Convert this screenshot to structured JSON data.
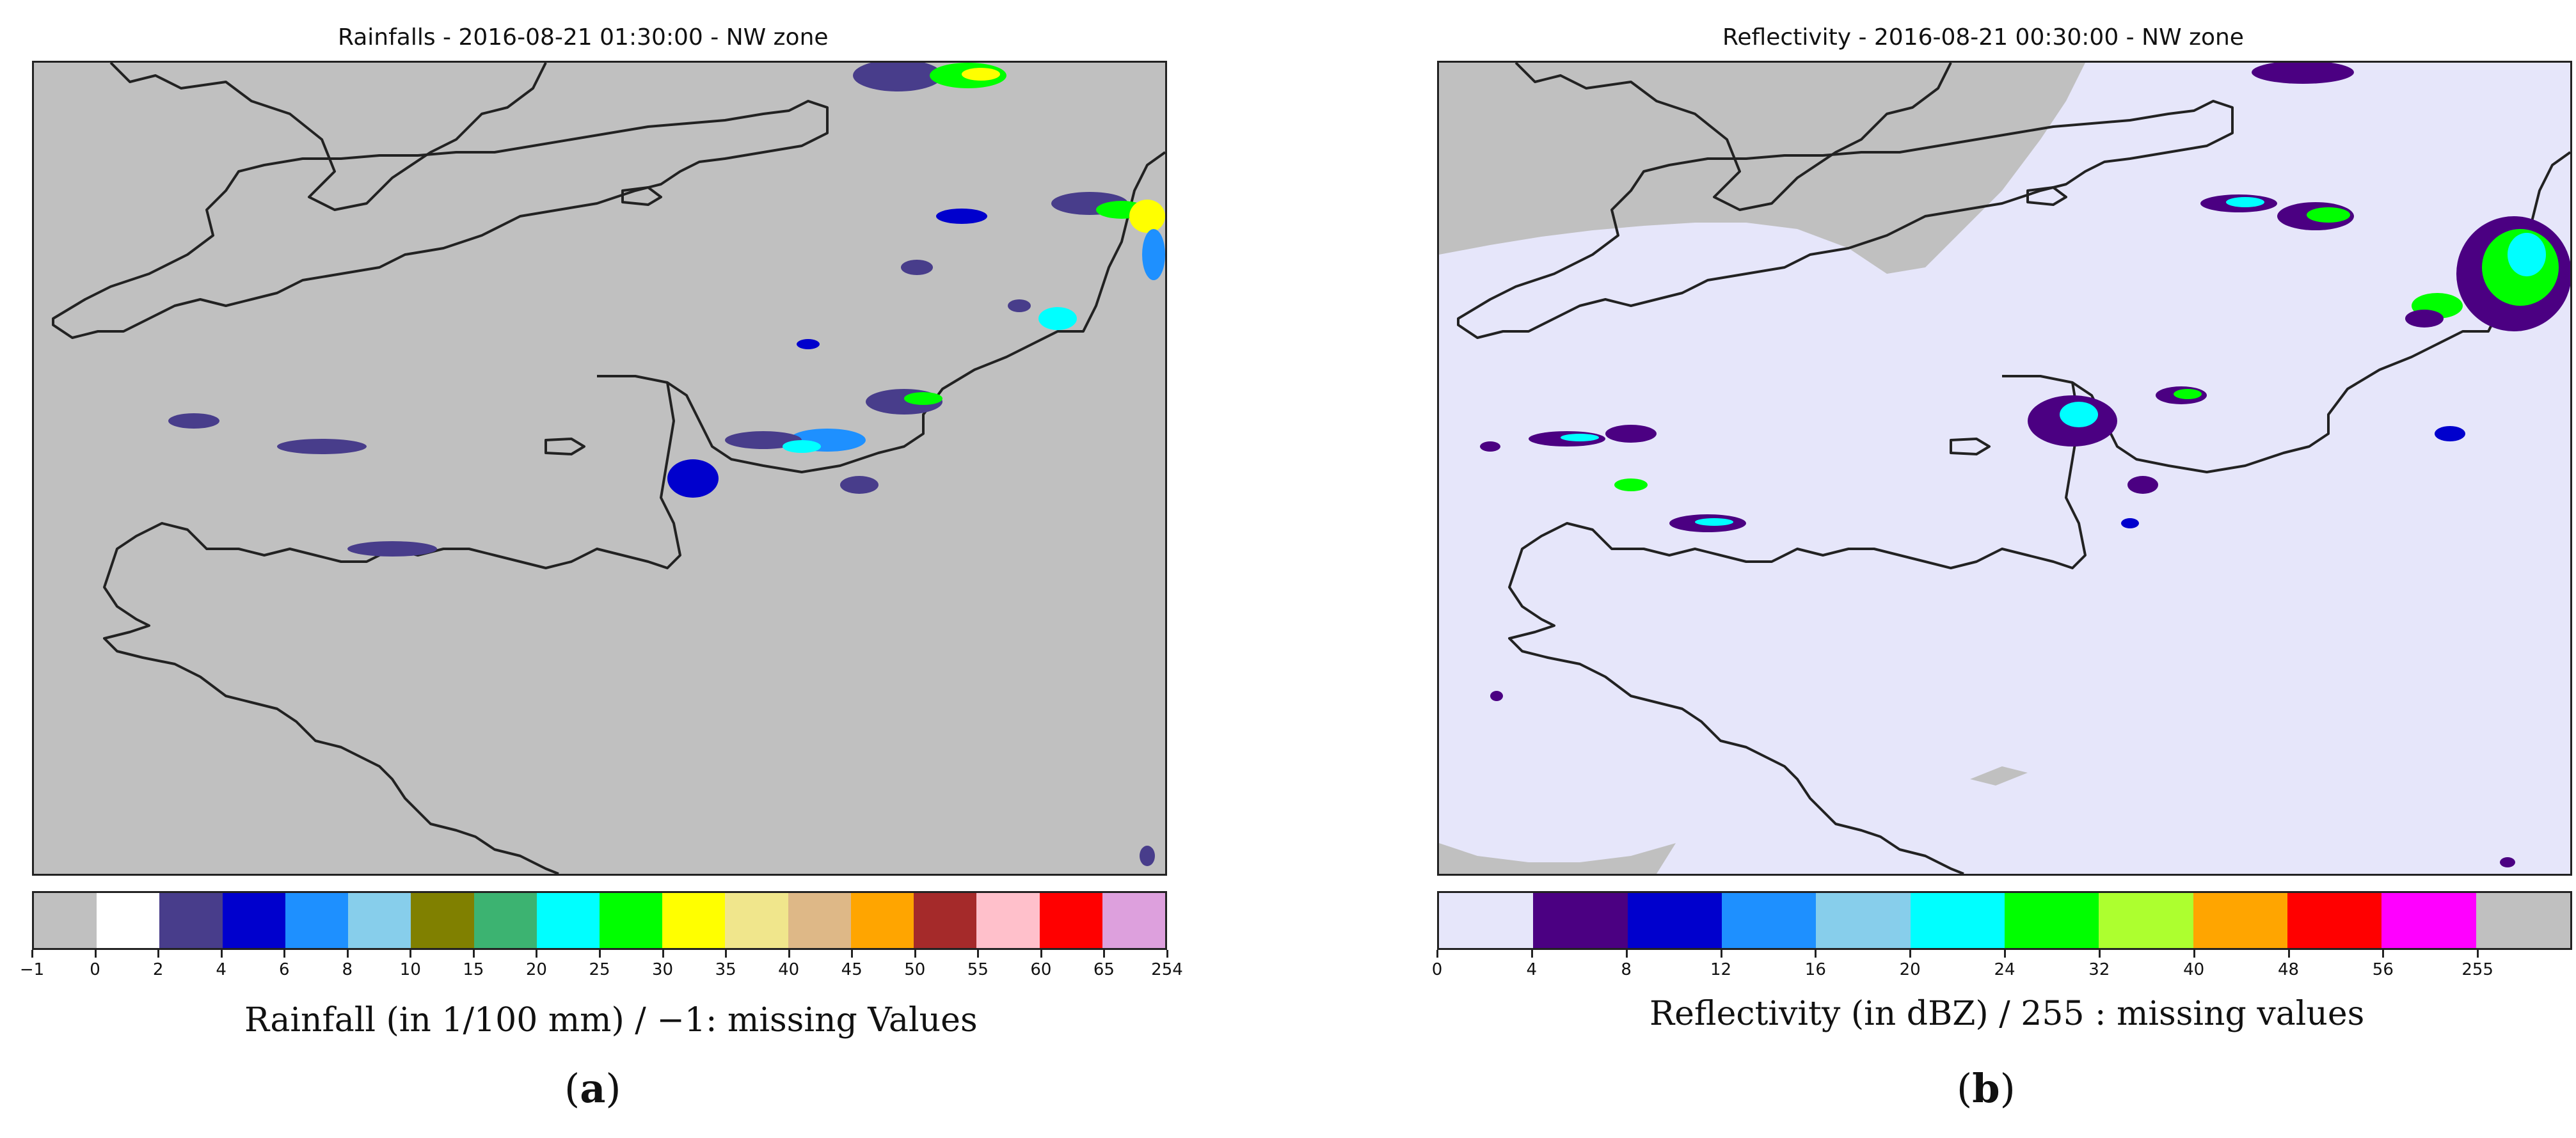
{
  "panels": [
    {
      "id": "a",
      "title": "Rainfalls - 2016-08-21 01:30:00 - NW zone",
      "background_color": "#c0c0c0",
      "coastline_color": "#222222",
      "colorbar": {
        "label": "Rainfall (in 1/100 mm) / −1: missing Values",
        "ticks": [
          "−1",
          "0",
          "2",
          "4",
          "6",
          "8",
          "10",
          "15",
          "20",
          "25",
          "30",
          "35",
          "40",
          "45",
          "50",
          "55",
          "60",
          "65",
          "254"
        ],
        "colors": [
          "#c0c0c0",
          "#ffffff",
          "#483d8b",
          "#0000cd",
          "#1e90ff",
          "#87ceeb",
          "#808000",
          "#3cb371",
          "#00ffff",
          "#00ff00",
          "#ffff00",
          "#f0e68c",
          "#deb887",
          "#ffa500",
          "#a52a2a",
          "#ffc0cb",
          "#ff0000",
          "#dda0dd"
        ]
      },
      "letter": "a"
    },
    {
      "id": "b",
      "title": "Reflectivity - 2016-08-21 00:30:00 - NW zone",
      "background_color": "#e6e6fa",
      "coastline_color": "#222222",
      "colorbar": {
        "label": "Reflectivity (in dBZ) / 255 : missing values",
        "ticks": [
          "0",
          "4",
          "8",
          "12",
          "16",
          "20",
          "24",
          "32",
          "40",
          "48",
          "56",
          "255"
        ],
        "colors": [
          "#e6e6fa",
          "#4b0082",
          "#0000cd",
          "#1e90ff",
          "#87ceeb",
          "#00ffff",
          "#00ff00",
          "#adff2f",
          "#ffa500",
          "#ff0000",
          "#ff00ff",
          "#c0c0c0"
        ]
      },
      "letter": "b"
    }
  ]
}
